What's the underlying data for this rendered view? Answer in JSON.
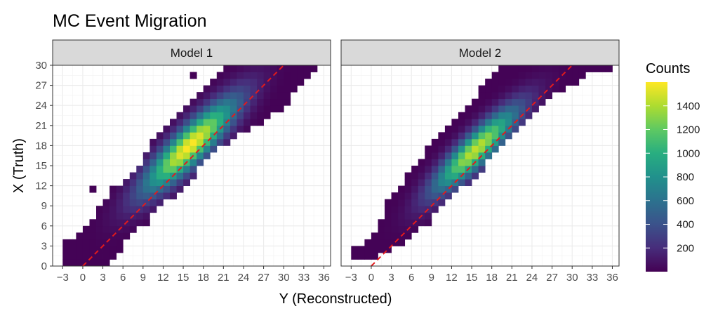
{
  "chart_data": {
    "type": "heatmap",
    "title": "MC Event Migration",
    "xlabel": "Y (Reconstructed)",
    "ylabel": "X (Truth)",
    "x_ticks": [
      -3,
      0,
      3,
      6,
      9,
      12,
      15,
      18,
      21,
      24,
      27,
      30,
      33,
      36
    ],
    "y_ticks": [
      0,
      3,
      6,
      9,
      12,
      15,
      18,
      21,
      24,
      27,
      30
    ],
    "xlim": [
      -4.5,
      37
    ],
    "ylim": [
      0,
      30
    ],
    "bin_width": 1,
    "reference_line": {
      "from": [
        0,
        0
      ],
      "to": [
        30,
        30
      ],
      "color": "#e41a1c",
      "style": "dashed"
    },
    "colorbar": {
      "title": "Counts",
      "range": [
        0,
        1600
      ],
      "ticks": [
        200,
        400,
        600,
        800,
        1000,
        1200,
        1400
      ],
      "colormap": "viridis"
    },
    "panels": [
      {
        "name": "Model 1",
        "model": {
          "bias": 2.0,
          "width": 2.4,
          "peak": 1600,
          "center_x": 16.5,
          "center_y": 17.5,
          "diag_sigma": 6.5,
          "rows": [
            {
              "y": 0,
              "x_min": -3,
              "x_max": 3
            },
            {
              "y": 1,
              "x_min": -3,
              "x_max": 4
            },
            {
              "y": 2,
              "x_min": -3,
              "x_max": 5
            },
            {
              "y": 3,
              "x_min": -3,
              "x_max": 5
            },
            {
              "y": 4,
              "x_min": -1,
              "x_max": 6
            },
            {
              "y": 5,
              "x_min": 0,
              "x_max": 7
            },
            {
              "y": 6,
              "x_min": 1,
              "x_max": 9
            },
            {
              "y": 7,
              "x_min": 2,
              "x_max": 9
            },
            {
              "y": 8,
              "x_min": 2,
              "x_max": 10
            },
            {
              "y": 9,
              "x_min": 3,
              "x_max": 11
            },
            {
              "y": 10,
              "x_min": 4,
              "x_max": 13
            },
            {
              "y": 11,
              "x_min": 4,
              "x_max": 14
            },
            {
              "y": 12,
              "x_min": 6,
              "x_max": 15
            },
            {
              "y": 13,
              "x_min": 7,
              "x_max": 16
            },
            {
              "y": 14,
              "x_min": 8,
              "x_max": 16
            },
            {
              "y": 15,
              "x_min": 9,
              "x_max": 17
            },
            {
              "y": 16,
              "x_min": 9,
              "x_max": 18
            },
            {
              "y": 17,
              "x_min": 10,
              "x_max": 19
            },
            {
              "y": 18,
              "x_min": 10,
              "x_max": 21
            },
            {
              "y": 19,
              "x_min": 11,
              "x_max": 22
            },
            {
              "y": 20,
              "x_min": 12,
              "x_max": 24
            },
            {
              "y": 21,
              "x_min": 13,
              "x_max": 26
            },
            {
              "y": 22,
              "x_min": 14,
              "x_max": 27
            },
            {
              "y": 23,
              "x_min": 15,
              "x_max": 29
            },
            {
              "y": 24,
              "x_min": 16,
              "x_max": 30
            },
            {
              "y": 25,
              "x_min": 17,
              "x_max": 30
            },
            {
              "y": 26,
              "x_min": 18,
              "x_max": 31
            },
            {
              "y": 27,
              "x_min": 19,
              "x_max": 32
            },
            {
              "y": 28,
              "x_min": 20,
              "x_max": 33
            },
            {
              "y": 29,
              "x_min": 21,
              "x_max": 34
            }
          ],
          "extra_cells": [
            {
              "x": 1,
              "y": 11
            },
            {
              "x": 16,
              "y": 28
            }
          ]
        }
      },
      {
        "name": "Model 2",
        "model": {
          "bias": 1.8,
          "width": 2.1,
          "peak": 1450,
          "center_x": 15.5,
          "center_y": 17.5,
          "diag_sigma": 6.0,
          "rows": [
            {
              "y": 1,
              "x_min": -3,
              "x_max": 0
            },
            {
              "y": 2,
              "x_min": -3,
              "x_max": 2
            },
            {
              "y": 3,
              "x_min": -1,
              "x_max": 4
            },
            {
              "y": 4,
              "x_min": 0,
              "x_max": 5
            },
            {
              "y": 5,
              "x_min": 1,
              "x_max": 6
            },
            {
              "y": 6,
              "x_min": 1,
              "x_max": 8
            },
            {
              "y": 7,
              "x_min": 2,
              "x_max": 8
            },
            {
              "y": 8,
              "x_min": 2,
              "x_max": 9
            },
            {
              "y": 9,
              "x_min": 2,
              "x_max": 10
            },
            {
              "y": 10,
              "x_min": 3,
              "x_max": 11
            },
            {
              "y": 11,
              "x_min": 4,
              "x_max": 12
            },
            {
              "y": 12,
              "x_min": 5,
              "x_max": 14
            },
            {
              "y": 13,
              "x_min": 5,
              "x_max": 15
            },
            {
              "y": 14,
              "x_min": 6,
              "x_max": 16
            },
            {
              "y": 15,
              "x_min": 7,
              "x_max": 16
            },
            {
              "y": 16,
              "x_min": 8,
              "x_max": 17
            },
            {
              "y": 17,
              "x_min": 8,
              "x_max": 18
            },
            {
              "y": 18,
              "x_min": 9,
              "x_max": 19
            },
            {
              "y": 19,
              "x_min": 10,
              "x_max": 20
            },
            {
              "y": 20,
              "x_min": 11,
              "x_max": 21
            },
            {
              "y": 21,
              "x_min": 12,
              "x_max": 22
            },
            {
              "y": 22,
              "x_min": 13,
              "x_max": 23
            },
            {
              "y": 23,
              "x_min": 14,
              "x_max": 24
            },
            {
              "y": 24,
              "x_min": 15,
              "x_max": 25
            },
            {
              "y": 25,
              "x_min": 16,
              "x_max": 26
            },
            {
              "y": 26,
              "x_min": 16,
              "x_max": 28
            },
            {
              "y": 27,
              "x_min": 17,
              "x_max": 30
            },
            {
              "y": 28,
              "x_min": 18,
              "x_max": 31
            },
            {
              "y": 29,
              "x_min": 19,
              "x_max": 35
            }
          ],
          "extra_cells": []
        }
      }
    ]
  }
}
